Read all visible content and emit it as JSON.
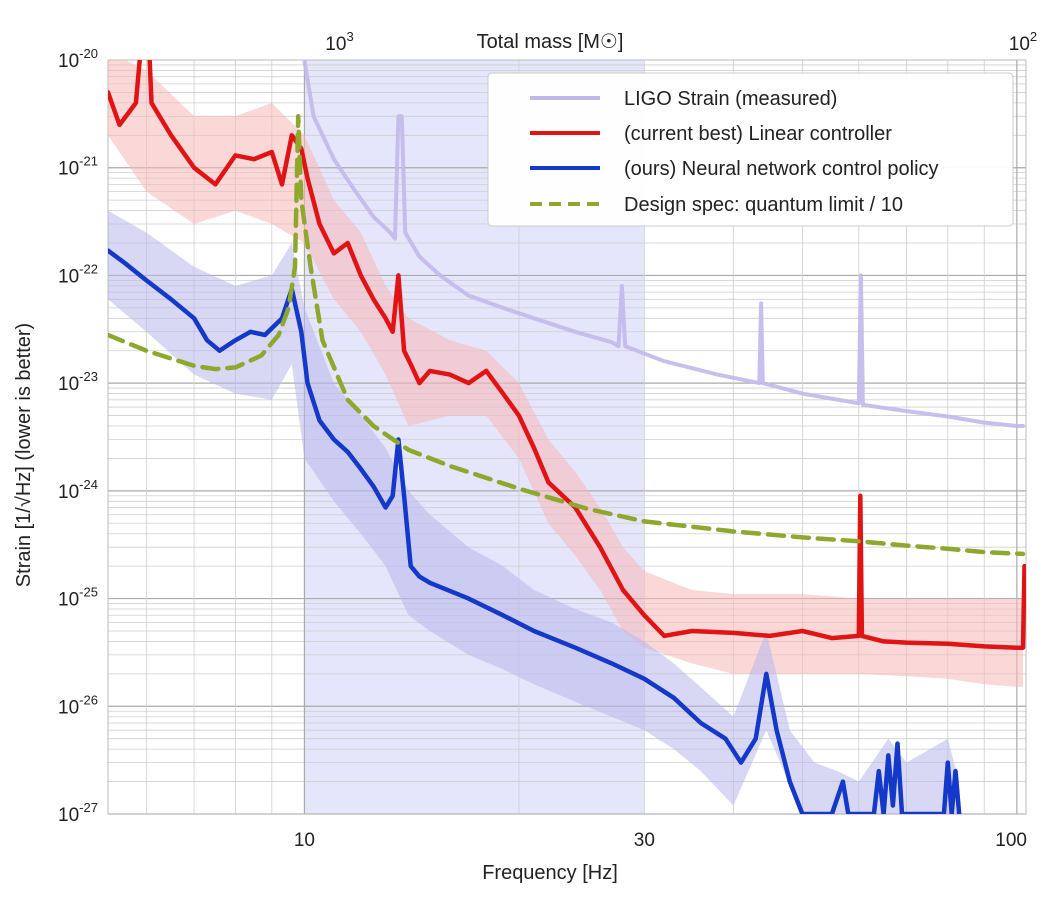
{
  "chart_data": {
    "type": "line",
    "title": "",
    "xlabel": "Frequency [Hz]",
    "ylabel": "Strain [1/√Hz] (lower is better)",
    "top_axis_label": "Total mass [M☉]",
    "xscale": "log",
    "yscale": "log",
    "xlim": [
      5.3,
      103
    ],
    "ylim": [
      1e-27,
      1e-20
    ],
    "x_ticks": [
      {
        "value": 10,
        "label": "10"
      },
      {
        "value": 30,
        "label": "30"
      },
      {
        "value": 100,
        "label": "100"
      }
    ],
    "y_ticks": [
      {
        "exp": -20,
        "label": "10",
        "sup": "-20"
      },
      {
        "exp": -21,
        "label": "10",
        "sup": "-21"
      },
      {
        "exp": -22,
        "label": "10",
        "sup": "-22"
      },
      {
        "exp": -23,
        "label": "10",
        "sup": "-23"
      },
      {
        "exp": -24,
        "label": "10",
        "sup": "-24"
      },
      {
        "exp": -25,
        "label": "10",
        "sup": "-25"
      },
      {
        "exp": -26,
        "label": "10",
        "sup": "-26"
      },
      {
        "exp": -27,
        "label": "10",
        "sup": "-27"
      }
    ],
    "top_ticks": [
      {
        "freq": 11.2,
        "label": "10",
        "sup": "3"
      },
      {
        "freq": 102,
        "label": "10",
        "sup": "2"
      }
    ],
    "shaded_band": {
      "x_from": 10,
      "x_to": 30,
      "color": "#dcdcfa"
    },
    "grid": true,
    "legend_position": "top-right",
    "series": [
      {
        "name": "LIGO Strain (measured)",
        "color": "#c2b8ec",
        "style": "solid",
        "points": [
          [
            9.7,
            5e-20
          ],
          [
            9.95,
            1.2e-20
          ],
          [
            10.3,
            3e-21
          ],
          [
            11,
            1.2e-21
          ],
          [
            11.8,
            6e-22
          ],
          [
            12.5,
            3.5e-22
          ],
          [
            13.2,
            2.5e-22
          ],
          [
            13.4,
            2.2e-22
          ],
          [
            13.55,
            3e-21
          ],
          [
            13.7,
            3e-21
          ],
          [
            13.85,
            2.5e-22
          ],
          [
            14.5,
            1.5e-22
          ],
          [
            15.5,
            1e-22
          ],
          [
            17,
            6.5e-23
          ],
          [
            19,
            5e-23
          ],
          [
            21,
            4e-23
          ],
          [
            24,
            3e-23
          ],
          [
            27,
            2.4e-23
          ],
          [
            27.6,
            2.2e-23
          ],
          [
            27.9,
            8e-23
          ],
          [
            28.2,
            2.2e-23
          ],
          [
            32,
            1.6e-23
          ],
          [
            38,
            1.2e-23
          ],
          [
            43.5,
            1e-23
          ],
          [
            43.75,
            5.5e-23
          ],
          [
            44,
            1e-23
          ],
          [
            50,
            8e-24
          ],
          [
            60,
            6.5e-24
          ],
          [
            60.4,
            1e-22
          ],
          [
            60.8,
            6.3e-24
          ],
          [
            70,
            5.5e-24
          ],
          [
            80,
            4.9e-24
          ],
          [
            90,
            4.3e-24
          ],
          [
            100,
            4e-24
          ],
          [
            102,
            4e-24
          ]
        ]
      },
      {
        "name": "(current best) Linear controller",
        "color": "#e01414",
        "style": "solid",
        "points": [
          [
            5.3,
            5e-21
          ],
          [
            5.5,
            2.5e-21
          ],
          [
            5.8,
            4e-21
          ],
          [
            6.0,
            5e-20
          ],
          [
            6.1,
            4e-21
          ],
          [
            6.5,
            2e-21
          ],
          [
            7.0,
            1e-21
          ],
          [
            7.5,
            7e-22
          ],
          [
            8.0,
            1.3e-21
          ],
          [
            8.5,
            1.2e-21
          ],
          [
            9.0,
            1.4e-21
          ],
          [
            9.3,
            7e-22
          ],
          [
            9.6,
            2e-21
          ],
          [
            9.9,
            1.5e-21
          ],
          [
            10.1,
            8e-22
          ],
          [
            10.5,
            3e-22
          ],
          [
            11,
            1.6e-22
          ],
          [
            11.5,
            2e-22
          ],
          [
            12,
            1e-22
          ],
          [
            12.5,
            6e-23
          ],
          [
            13,
            4e-23
          ],
          [
            13.3,
            3e-23
          ],
          [
            13.55,
            1e-22
          ],
          [
            13.8,
            2e-23
          ],
          [
            14.1,
            1.5e-23
          ],
          [
            14.5,
            1e-23
          ],
          [
            15,
            1.3e-23
          ],
          [
            16,
            1.2e-23
          ],
          [
            17,
            1e-23
          ],
          [
            18,
            1.3e-23
          ],
          [
            19,
            8e-24
          ],
          [
            20,
            5e-24
          ],
          [
            21,
            2.5e-24
          ],
          [
            22,
            1.2e-24
          ],
          [
            24,
            7e-25
          ],
          [
            26,
            3e-25
          ],
          [
            28,
            1.2e-25
          ],
          [
            30,
            7e-26
          ],
          [
            32,
            4.5e-26
          ],
          [
            35,
            5e-26
          ],
          [
            40,
            4.8e-26
          ],
          [
            45,
            4.5e-26
          ],
          [
            50,
            5e-26
          ],
          [
            55,
            4.3e-26
          ],
          [
            60,
            4.5e-26
          ],
          [
            60.3,
            9e-25
          ],
          [
            60.6,
            4.5e-26
          ],
          [
            65,
            4e-26
          ],
          [
            70,
            3.9e-26
          ],
          [
            80,
            3.8e-26
          ],
          [
            90,
            3.6e-26
          ],
          [
            100,
            3.5e-26
          ],
          [
            102,
            3.5e-26
          ],
          [
            102.5,
            2e-25
          ]
        ]
      },
      {
        "name": "(ours) Neural network control policy",
        "color": "#1438c8",
        "style": "solid",
        "points": [
          [
            5.3,
            1.7e-22
          ],
          [
            5.6,
            1.3e-22
          ],
          [
            6,
            9e-23
          ],
          [
            6.5,
            6e-23
          ],
          [
            7,
            4e-23
          ],
          [
            7.3,
            2.5e-23
          ],
          [
            7.6,
            2e-23
          ],
          [
            8,
            2.5e-23
          ],
          [
            8.4,
            3e-23
          ],
          [
            8.8,
            2.8e-23
          ],
          [
            9.3,
            4e-23
          ],
          [
            9.6,
            7.5e-23
          ],
          [
            9.9,
            3e-23
          ],
          [
            10.1,
            1e-23
          ],
          [
            10.5,
            4.5e-24
          ],
          [
            11,
            3e-24
          ],
          [
            11.5,
            2.3e-24
          ],
          [
            12,
            1.6e-24
          ],
          [
            12.5,
            1.1e-24
          ],
          [
            13,
            7e-25
          ],
          [
            13.3,
            9e-25
          ],
          [
            13.55,
            3e-24
          ],
          [
            13.8,
            9e-25
          ],
          [
            14.1,
            2e-25
          ],
          [
            14.5,
            1.6e-25
          ],
          [
            15,
            1.4e-25
          ],
          [
            17,
            1e-25
          ],
          [
            19,
            7e-26
          ],
          [
            21,
            5e-26
          ],
          [
            24,
            3.5e-26
          ],
          [
            27,
            2.5e-26
          ],
          [
            30,
            1.8e-26
          ],
          [
            33,
            1.2e-26
          ],
          [
            36,
            7e-27
          ],
          [
            39,
            5e-27
          ],
          [
            41,
            3e-27
          ],
          [
            43,
            5e-27
          ],
          [
            44.5,
            2e-26
          ],
          [
            46,
            6e-27
          ],
          [
            48,
            2e-27
          ],
          [
            50,
            1e-27
          ],
          [
            55,
            1e-27
          ],
          [
            57,
            2e-27
          ],
          [
            58,
            1e-27
          ],
          [
            63,
            1e-27
          ],
          [
            64,
            2.5e-27
          ],
          [
            65,
            1e-27
          ],
          [
            66,
            3.5e-27
          ],
          [
            67,
            1.2e-27
          ],
          [
            68,
            4.5e-27
          ],
          [
            69,
            1e-27
          ],
          [
            79,
            1e-27
          ],
          [
            80,
            3e-27
          ],
          [
            81,
            1e-27
          ],
          [
            82,
            2.5e-27
          ],
          [
            83,
            1e-27
          ]
        ]
      },
      {
        "name": "Design spec: quantum limit / 10",
        "color": "#8ea82e",
        "style": "dashed",
        "points": [
          [
            5.3,
            2.8e-23
          ],
          [
            6,
            2e-23
          ],
          [
            7,
            1.45e-23
          ],
          [
            7.5,
            1.35e-23
          ],
          [
            8,
            1.4e-23
          ],
          [
            8.7,
            1.8e-23
          ],
          [
            9.2,
            2.8e-23
          ],
          [
            9.5,
            5e-23
          ],
          [
            9.7,
            1.2e-22
          ],
          [
            9.8,
            3e-21
          ],
          [
            9.9,
            5e-22
          ],
          [
            10.2,
            1.2e-22
          ],
          [
            10.6,
            2.5e-23
          ],
          [
            11.5,
            7e-24
          ],
          [
            12.5,
            4e-24
          ],
          [
            14,
            2.4e-24
          ],
          [
            16,
            1.7e-24
          ],
          [
            20,
            1.05e-24
          ],
          [
            25,
            6.8e-25
          ],
          [
            30,
            5.2e-25
          ],
          [
            40,
            4.2e-25
          ],
          [
            50,
            3.7e-25
          ],
          [
            60,
            3.4e-25
          ],
          [
            70,
            3.1e-25
          ],
          [
            80,
            2.9e-25
          ],
          [
            90,
            2.7e-25
          ],
          [
            102,
            2.6e-25
          ]
        ]
      }
    ],
    "bands": [
      {
        "name": "linear-controller-band",
        "color": "#f8b8b8",
        "upper": [
          [
            5.3,
            1.2e-20
          ],
          [
            6,
            8e-21
          ],
          [
            7,
            3e-21
          ],
          [
            8,
            3e-21
          ],
          [
            9,
            4e-21
          ],
          [
            10,
            2e-21
          ],
          [
            11,
            5e-22
          ],
          [
            12,
            2.5e-22
          ],
          [
            13,
            8e-23
          ],
          [
            14,
            4e-23
          ],
          [
            16,
            2.5e-23
          ],
          [
            18,
            2e-23
          ],
          [
            20,
            1e-23
          ],
          [
            22,
            3e-24
          ],
          [
            24,
            1.5e-24
          ],
          [
            26,
            7e-25
          ],
          [
            28,
            3e-25
          ],
          [
            30,
            1.8e-25
          ],
          [
            35,
            1.2e-25
          ],
          [
            40,
            1.1e-25
          ],
          [
            50,
            1.1e-25
          ],
          [
            60,
            1e-25
          ],
          [
            70,
            1e-25
          ],
          [
            80,
            1e-25
          ],
          [
            90,
            1e-25
          ],
          [
            102,
            1e-25
          ]
        ],
        "lower": [
          [
            102,
            1.5e-26
          ],
          [
            90,
            1.6e-26
          ],
          [
            80,
            1.8e-26
          ],
          [
            70,
            1.9e-26
          ],
          [
            60,
            2e-26
          ],
          [
            50,
            2e-26
          ],
          [
            40,
            2e-26
          ],
          [
            35,
            2.5e-26
          ],
          [
            30,
            3.5e-26
          ],
          [
            28,
            5e-26
          ],
          [
            26,
            1.2e-25
          ],
          [
            24,
            2.5e-25
          ],
          [
            22,
            5e-25
          ],
          [
            20,
            2e-24
          ],
          [
            18,
            5e-24
          ],
          [
            16,
            5e-24
          ],
          [
            14,
            4e-24
          ],
          [
            13,
            1.2e-23
          ],
          [
            12,
            3e-23
          ],
          [
            11,
            6e-23
          ],
          [
            10,
            2e-22
          ],
          [
            9,
            3e-22
          ],
          [
            8,
            4e-22
          ],
          [
            7,
            3e-22
          ],
          [
            6,
            6e-22
          ],
          [
            5.3,
            2e-21
          ]
        ]
      },
      {
        "name": "neural-policy-band",
        "color": "#b8b8ec",
        "upper": [
          [
            5.3,
            4e-22
          ],
          [
            6,
            2.5e-22
          ],
          [
            7,
            1.2e-22
          ],
          [
            8,
            8e-23
          ],
          [
            9,
            1e-22
          ],
          [
            9.6,
            2e-22
          ],
          [
            10,
            5e-23
          ],
          [
            11,
            1e-23
          ],
          [
            12,
            5e-24
          ],
          [
            13,
            2.5e-24
          ],
          [
            14,
            1e-24
          ],
          [
            15,
            6e-25
          ],
          [
            17,
            3e-25
          ],
          [
            19,
            2e-25
          ],
          [
            21,
            1.2e-25
          ],
          [
            24,
            8e-26
          ],
          [
            27,
            6e-26
          ],
          [
            30,
            4e-26
          ],
          [
            33,
            2.5e-26
          ],
          [
            36,
            1.5e-26
          ],
          [
            40,
            8e-27
          ],
          [
            44.5,
            5e-26
          ],
          [
            48,
            6e-27
          ],
          [
            52,
            3e-27
          ],
          [
            56,
            2.5e-27
          ],
          [
            60,
            2e-27
          ],
          [
            66,
            5e-27
          ],
          [
            70,
            3e-27
          ],
          [
            80,
            5e-27
          ],
          [
            83,
            2e-27
          ]
        ],
        "lower": [
          [
            83,
            1e-27
          ],
          [
            70,
            1e-27
          ],
          [
            60,
            1e-27
          ],
          [
            50,
            1e-27
          ],
          [
            44.5,
            6e-27
          ],
          [
            40,
            1.2e-27
          ],
          [
            36,
            2.5e-27
          ],
          [
            33,
            4e-27
          ],
          [
            30,
            6e-27
          ],
          [
            27,
            8e-27
          ],
          [
            24,
            1.1e-26
          ],
          [
            21,
            1.6e-26
          ],
          [
            19,
            2.2e-26
          ],
          [
            17,
            3e-26
          ],
          [
            15,
            5e-26
          ],
          [
            14,
            7e-26
          ],
          [
            13,
            2e-25
          ],
          [
            12,
            4e-25
          ],
          [
            11,
            8e-25
          ],
          [
            10,
            2e-24
          ],
          [
            9.6,
            1.5e-23
          ],
          [
            9,
            7e-24
          ],
          [
            8,
            8e-24
          ],
          [
            7,
            1.2e-23
          ],
          [
            6,
            3e-23
          ],
          [
            5.3,
            6e-23
          ]
        ]
      }
    ]
  }
}
